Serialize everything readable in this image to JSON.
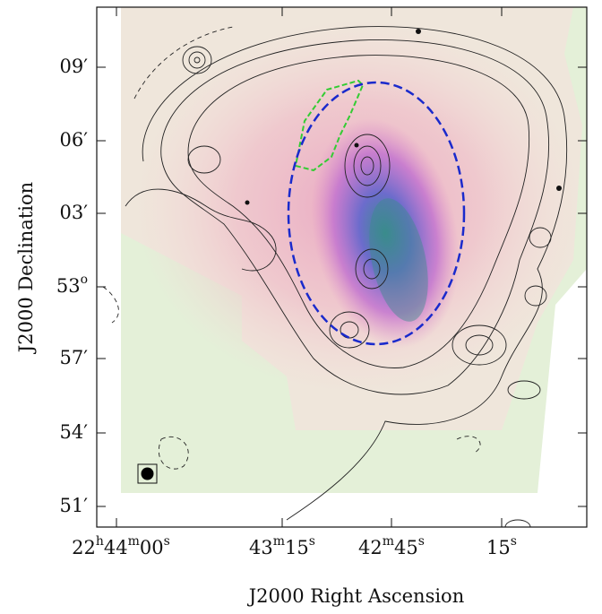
{
  "x_axis": {
    "label": "J2000 Right Ascension",
    "ticks": [
      [
        "22",
        "h",
        "44",
        "m",
        "00",
        "s"
      ],
      [
        "43",
        "m",
        "15",
        "s"
      ],
      [
        "42",
        "m",
        "45",
        "s"
      ],
      [
        "15",
        "s"
      ]
    ]
  },
  "y_axis": {
    "label": "J2000 Declination",
    "ticks": [
      [
        "09′"
      ],
      [
        "06′"
      ],
      [
        "03′"
      ],
      [
        "53",
        "o"
      ],
      [
        "57′"
      ],
      [
        "54′"
      ],
      [
        "51′"
      ]
    ]
  }
}
